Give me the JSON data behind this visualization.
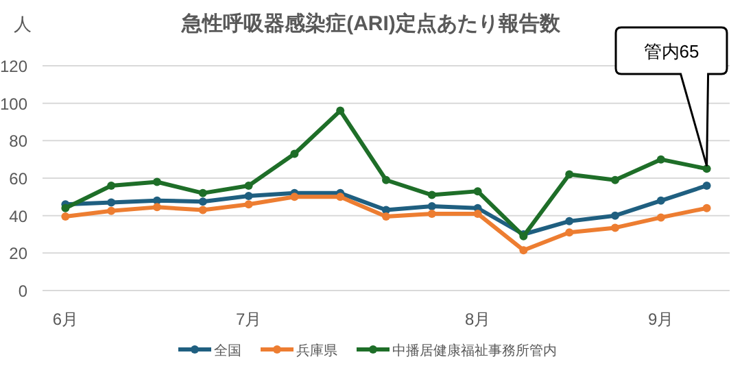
{
  "chart_data": {
    "type": "line",
    "title": "急性呼吸器感染症(ARI)定点あたり報告数",
    "ylabel": "人",
    "categories": [
      "6月",
      null,
      null,
      null,
      "7月",
      null,
      null,
      null,
      null,
      "8月",
      null,
      null,
      null,
      "9月",
      null
    ],
    "series": [
      {
        "name": "全国",
        "color": "#1f5f80",
        "values": [
          46,
          47,
          48,
          47.5,
          50.5,
          52,
          52,
          43,
          45,
          44,
          30,
          37,
          40,
          48,
          56
        ]
      },
      {
        "name": "兵庫県",
        "color": "#ed7d31",
        "values": [
          39.5,
          42.5,
          44.5,
          43,
          46,
          50,
          50,
          39.5,
          41,
          41,
          21.5,
          31,
          33.5,
          39,
          44
        ]
      },
      {
        "name": "中播居健康福祉事務所管内",
        "color": "#1e6e28",
        "values": [
          44,
          56,
          58,
          52,
          56,
          73,
          96,
          59,
          51,
          53,
          29,
          62,
          59,
          70,
          65
        ]
      }
    ],
    "annotations": [
      "管内65"
    ],
    "ylim": [
      0,
      120
    ],
    "yticks": [
      0,
      20,
      40,
      60,
      80,
      100,
      120
    ],
    "grid": "y",
    "legend": "bottom",
    "marker": "circle",
    "line_style": "solid"
  }
}
